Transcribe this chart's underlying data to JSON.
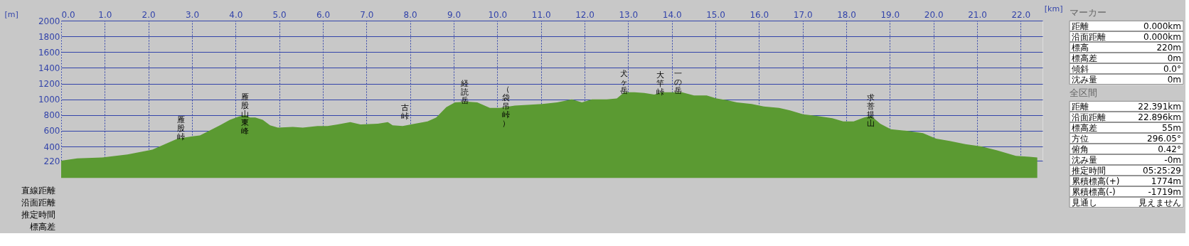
{
  "chart_data": [
    {
      "type": "area",
      "xlabel": "[km]",
      "ylabel": "[m]",
      "color": "#5b9a32",
      "grid": true,
      "xlim": [
        0,
        22.5
      ],
      "ylim": [
        220,
        2000
      ],
      "xticks": [
        {
          "value": 0,
          "label": "0.0"
        },
        {
          "value": 1,
          "label": "1.0"
        },
        {
          "value": 2,
          "label": "2.0"
        },
        {
          "value": 3,
          "label": "3.0"
        },
        {
          "value": 4,
          "label": "4.0"
        },
        {
          "value": 5,
          "label": "5.0"
        },
        {
          "value": 6,
          "label": "6.0"
        },
        {
          "value": 7,
          "label": "7.0"
        },
        {
          "value": 8,
          "label": "8.0"
        },
        {
          "value": 9,
          "label": "9.0"
        },
        {
          "value": 10,
          "label": "10.0"
        },
        {
          "value": 11,
          "label": "11.0"
        },
        {
          "value": 12,
          "label": "12.0"
        },
        {
          "value": 13,
          "label": "13.0"
        },
        {
          "value": 14,
          "label": "14.0"
        },
        {
          "value": 15,
          "label": "15.0"
        },
        {
          "value": 16,
          "label": "16.0"
        },
        {
          "value": 17,
          "label": "17.0"
        },
        {
          "value": 18,
          "label": "18.0"
        },
        {
          "value": 19,
          "label": "19.0"
        },
        {
          "value": 20,
          "label": "20.0"
        },
        {
          "value": 21,
          "label": "21.0"
        },
        {
          "value": 22,
          "label": "22.0"
        }
      ],
      "yticks": [
        220,
        400,
        600,
        800,
        1000,
        1200,
        1400,
        1600,
        1800,
        2000
      ],
      "x": [
        0,
        0.37,
        0.94,
        1.52,
        2.09,
        2.38,
        2.67,
        3.01,
        3.18,
        3.36,
        3.64,
        3.87,
        4.07,
        4.22,
        4.33,
        4.45,
        4.62,
        4.79,
        4.97,
        5.31,
        5.54,
        5.88,
        6.11,
        6.34,
        6.63,
        6.86,
        7.26,
        7.49,
        7.6,
        7.83,
        8.11,
        8.4,
        8.6,
        8.83,
        9.03,
        9.31,
        9.54,
        9.83,
        10.06,
        10.4,
        10.69,
        11.03,
        11.37,
        11.71,
        11.94,
        12.17,
        12.51,
        12.74,
        12.91,
        13.14,
        13.37,
        13.6,
        13.77,
        13.94,
        14.23,
        14.51,
        14.8,
        15.03,
        15.26,
        15.49,
        15.83,
        16.11,
        16.46,
        16.71,
        17.01,
        17.32,
        17.68,
        17.93,
        18.17,
        18.41,
        18.57,
        18.78,
        19.02,
        19.39,
        19.76,
        20.06,
        20.37,
        20.73,
        21.1,
        21.46,
        21.89,
        22.2,
        22.38
      ],
      "values": [
        220,
        250,
        260,
        300,
        360,
        430,
        500,
        530,
        540,
        590,
        670,
        740,
        780,
        800,
        770,
        770,
        740,
        670,
        640,
        650,
        640,
        660,
        660,
        680,
        710,
        680,
        690,
        710,
        670,
        660,
        690,
        720,
        770,
        900,
        960,
        970,
        960,
        890,
        890,
        920,
        930,
        940,
        960,
        1000,
        960,
        1000,
        1000,
        1010,
        1090,
        1090,
        1080,
        1060,
        1090,
        1090,
        1090,
        1050,
        1050,
        1010,
        990,
        960,
        940,
        910,
        890,
        860,
        810,
        790,
        760,
        720,
        720,
        770,
        790,
        690,
        620,
        600,
        570,
        500,
        470,
        430,
        400,
        350,
        280,
        270,
        260
      ],
      "annotations": [
        {
          "text": "雁股峠",
          "x": 2.75,
          "y": 510
        },
        {
          "text": "雁股山東峰",
          "x": 4.22,
          "y": 796
        },
        {
          "text": "古峠",
          "x": 7.89,
          "y": 660
        },
        {
          "text": "経読岳",
          "x": 9.26,
          "y": 971
        },
        {
          "text": "（袋吊峠）",
          "x": 10.2,
          "y": 900
        },
        {
          "text": "犬ヶ岳",
          "x": 12.91,
          "y": 1093
        },
        {
          "text": "大竿峠",
          "x": 13.74,
          "y": 1080
        },
        {
          "text": "一の岳",
          "x": 14.14,
          "y": 1093
        },
        {
          "text": "求菩提山",
          "x": 18.57,
          "y": 790
        },
        "直線距離",
        "沿面距離",
        "推定時間",
        "標高差"
      ]
    },
    {
      "type": "other",
      "title": "マーカー",
      "annotations": [
        "距離",
        "0.000km",
        "沿面距離",
        "0.000km",
        "標高",
        "220m",
        "標高差",
        "0m",
        "傾斜",
        "0.0°",
        "沈み量",
        "0m"
      ]
    },
    {
      "type": "other",
      "title": "全区間",
      "annotations": [
        "距離",
        "22.391km",
        "沿面距離",
        "22.896km",
        "標高差",
        "55m",
        "方位",
        "296.05°",
        "俯角",
        "0.42°",
        "沈み量",
        "-0m",
        "推定時間",
        "05:25:29",
        "累積標高(+)",
        "1774m",
        "累積標高(-)",
        "-1719m",
        "見通し",
        "見えません"
      ]
    }
  ]
}
